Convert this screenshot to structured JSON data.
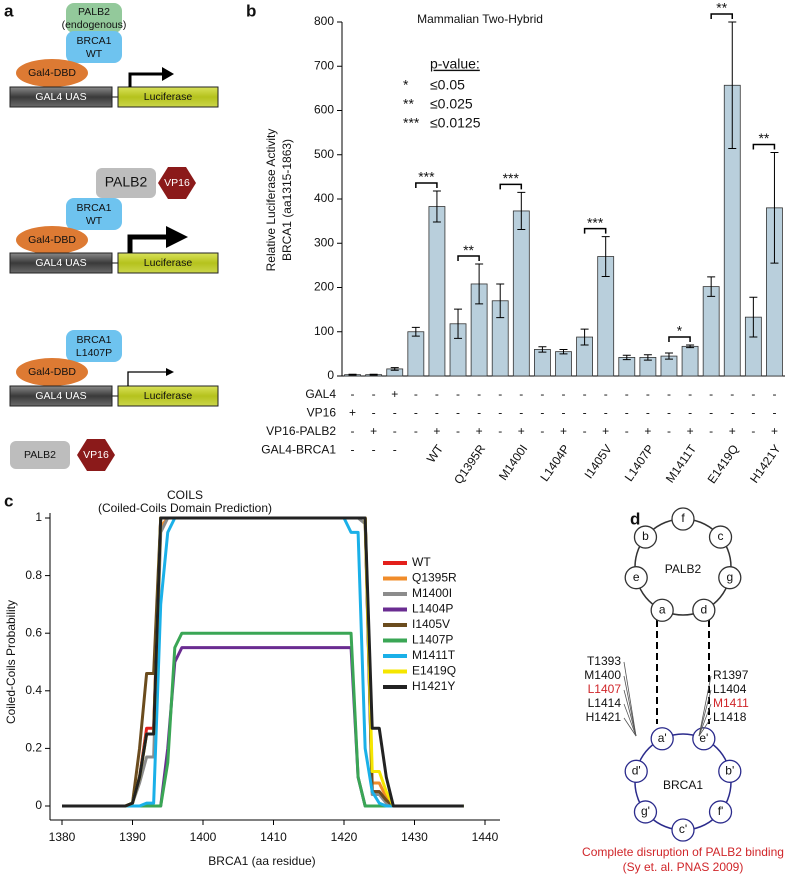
{
  "panel_labels": [
    "a",
    "b",
    "c",
    "d"
  ],
  "panel_a": {
    "gal4_uas": "GAL4 UAS",
    "luciferase": "Luciferase",
    "gal4_dbd": "Gal4-DBD",
    "palb2_endogenous": [
      "PALB2",
      "(endogenous)"
    ],
    "brca1_wt": [
      "BRCA1",
      "WT"
    ],
    "palb2": "PALB2",
    "vp16": "VP16",
    "brca1_mutant": [
      "BRCA1",
      "L1407P"
    ]
  },
  "chart_data": [
    {
      "type": "bar",
      "title": "Mammalian Two-Hybrid",
      "y_label": [
        "Relative Luciferase Activity",
        "BRCA1 (aa1315-1863)"
      ],
      "values": [
        3,
        3,
        16,
        100,
        383,
        118,
        208,
        170,
        373,
        60,
        55,
        88,
        270,
        42,
        42,
        45,
        67,
        202,
        657,
        133,
        380
      ],
      "errors": [
        1,
        1,
        3,
        10,
        35,
        33,
        45,
        38,
        42,
        6,
        5,
        18,
        45,
        5,
        6,
        7,
        3,
        22,
        143,
        45,
        125
      ],
      "color": "#b9cfdc",
      "ylim": [
        0,
        800
      ],
      "yticks": [
        0,
        100,
        200,
        300,
        400,
        500,
        600,
        700,
        800
      ],
      "significance": [
        "***",
        "**",
        "***",
        null,
        "***",
        null,
        "*",
        "**",
        "**"
      ],
      "legend_title": "p-value:",
      "legend": [
        {
          "symbol": "*",
          "label": "≤0.05"
        },
        {
          "symbol": "**",
          "label": "≤0.025"
        },
        {
          "symbol": "***",
          "label": "≤0.0125"
        }
      ],
      "rows": [
        {
          "label": "GAL4",
          "signs": [
            "-",
            "-",
            "+",
            "-",
            "-",
            "-",
            "-",
            "-",
            "-",
            "-",
            "-",
            "-",
            "-",
            "-",
            "-",
            "-",
            "-",
            "-",
            "-",
            "-",
            "-"
          ]
        },
        {
          "label": "VP16",
          "signs": [
            "+",
            "-",
            "-",
            "-",
            "-",
            "-",
            "-",
            "-",
            "-",
            "-",
            "-",
            "-",
            "-",
            "-",
            "-",
            "-",
            "-",
            "-",
            "-",
            "-",
            "-"
          ]
        },
        {
          "label": "VP16-PALB2",
          "signs": [
            "-",
            "+",
            "-",
            "-",
            "+",
            "-",
            "+",
            "-",
            "+",
            "-",
            "+",
            "-",
            "+",
            "-",
            "+",
            "-",
            "+",
            "-",
            "+",
            "-",
            "+"
          ]
        },
        {
          "label": "GAL4-BRCA1",
          "signs": [
            "-",
            "-",
            "-"
          ],
          "groups": [
            "WT",
            "Q1395R",
            "M1400I",
            "L1404P",
            "I1405V",
            "L1407P",
            "M1411T",
            "E1419Q",
            "H1421Y"
          ]
        }
      ]
    },
    {
      "type": "line",
      "title": "COILS",
      "subtitle": "(Coiled-Coils Domain Prediction)",
      "x_label": "BRCA1 (aa residue)",
      "y_label": "Coiled-Coils Probability",
      "x": [
        1380,
        1389,
        1390,
        1391,
        1392,
        1393,
        1394,
        1395,
        1396,
        1397,
        1420,
        1421,
        1422,
        1423,
        1424,
        1425,
        1426,
        1427,
        1428,
        1437
      ],
      "series": [
        {
          "name": "WT",
          "color": "#e3201b",
          "values": [
            0,
            0,
            0.01,
            0.1,
            0.27,
            0.27,
            1,
            1,
            1,
            1,
            1,
            1,
            1,
            1,
            0.05,
            0.05,
            0.02,
            0,
            0,
            0
          ]
        },
        {
          "name": "Q1395R",
          "color": "#f08c2a",
          "values": [
            0,
            0,
            0.01,
            0.1,
            0.25,
            0.25,
            0.97,
            1,
            1,
            1,
            1,
            1,
            1,
            1,
            0.08,
            0.08,
            0.03,
            0,
            0,
            0
          ]
        },
        {
          "name": "M1400I",
          "color": "#8c8c8c",
          "values": [
            0,
            0,
            0.01,
            0.08,
            0.17,
            0.17,
            0.95,
            1,
            1,
            1,
            1,
            1,
            1,
            0.98,
            0.04,
            0.04,
            0.01,
            0,
            0,
            0
          ]
        },
        {
          "name": "L1404P",
          "color": "#6a2c91",
          "values": [
            0,
            0,
            0,
            0,
            0,
            0,
            0,
            0.2,
            0.5,
            0.55,
            0.55,
            0.55,
            0.1,
            0,
            0,
            0,
            0,
            0,
            0,
            0
          ]
        },
        {
          "name": "I1405V",
          "color": "#6b4c1e",
          "values": [
            0,
            0,
            0.01,
            0.2,
            0.46,
            0.46,
            1,
            1,
            1,
            1,
            1,
            1,
            1,
            1,
            0.05,
            0.05,
            0.02,
            0,
            0,
            0
          ]
        },
        {
          "name": "L1407P",
          "color": "#3aa655",
          "values": [
            0,
            0,
            0,
            0,
            0,
            0,
            0,
            0.15,
            0.55,
            0.6,
            0.6,
            0.6,
            0.1,
            0,
            0,
            0,
            0,
            0,
            0,
            0
          ]
        },
        {
          "name": "M1411T",
          "color": "#1ab0e8",
          "values": [
            0,
            0,
            0,
            0,
            0.01,
            0.01,
            0.7,
            0.95,
            1,
            1,
            1,
            0.95,
            0.95,
            0.2,
            0.05,
            0.01,
            0,
            0,
            0,
            0
          ]
        },
        {
          "name": "E1419Q",
          "color": "#f5e600",
          "values": [
            0,
            0,
            0.01,
            0.1,
            0.25,
            0.25,
            1,
            1,
            1,
            1,
            1,
            1,
            1,
            1,
            0.12,
            0.12,
            0.05,
            0,
            0,
            0
          ]
        },
        {
          "name": "H1421Y",
          "color": "#222222",
          "values": [
            0,
            0,
            0.01,
            0.1,
            0.25,
            0.25,
            1,
            1,
            1,
            1,
            1,
            1,
            1,
            1,
            0.27,
            0.27,
            0.1,
            0,
            0,
            0
          ]
        }
      ],
      "xlim": [
        1380,
        1440
      ],
      "xticks": [
        1380,
        1390,
        1400,
        1410,
        1420,
        1430,
        1440
      ],
      "ylim": [
        0,
        1
      ],
      "yticks": [
        0,
        0.2,
        0.4,
        0.6,
        0.8,
        1
      ]
    }
  ],
  "panel_d": {
    "palb2": "PALB2",
    "brca1": "BRCA1",
    "palb2_positions": [
      "f",
      "c",
      "g",
      "d",
      "a",
      "e",
      "b"
    ],
    "brca1_positions": [
      "a'",
      "e'",
      "b'",
      "f'",
      "c'",
      "g'",
      "d'"
    ],
    "left_residues": [
      {
        "label": "T1393"
      },
      {
        "label": "M1400"
      },
      {
        "label": "L1407",
        "color": "#d0262a"
      },
      {
        "label": "L1414"
      },
      {
        "label": "H1421"
      }
    ],
    "right_residues": [
      {
        "label": "R1397"
      },
      {
        "label": "L1404"
      },
      {
        "label": "M1411",
        "color": "#d0262a"
      },
      {
        "label": "L1418"
      }
    ],
    "caption": [
      "Complete disruption of PALB2 binding",
      "(Sy et. al. PNAS 2009)"
    ],
    "caption_color": "#d0262a"
  }
}
